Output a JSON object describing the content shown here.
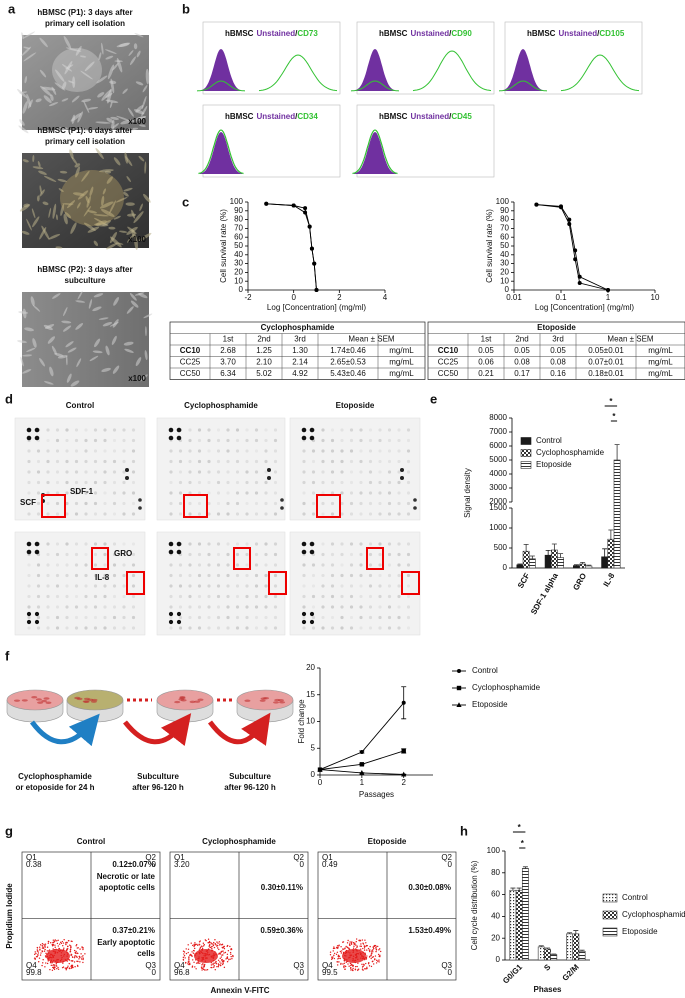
{
  "panel_labels": [
    "a",
    "b",
    "c",
    "d",
    "e",
    "f",
    "g",
    "h"
  ],
  "panel_a": {
    "captions": [
      [
        "hBMSC (P1): 3 days after",
        "primary cell isolation"
      ],
      [
        "hBMSC (P1): 6 days after",
        "primary cell isolation"
      ],
      [
        "hBMSC (P2): 3 days after",
        "subculture"
      ]
    ],
    "magnification": [
      "x100",
      "x100",
      "x100"
    ]
  },
  "panel_b": {
    "histograms": [
      {
        "sample": "hBMSC",
        "control": "Unstained",
        "separator": "/",
        "marker": "CD73"
      },
      {
        "sample": "hBMSC",
        "control": "Unstained",
        "separator": "/",
        "marker": "CD90"
      },
      {
        "sample": "hBMSC",
        "control": "Unstained",
        "separator": "/",
        "marker": "CD105"
      },
      {
        "sample": "hBMSC",
        "control": "Unstained",
        "separator": "/",
        "marker": "CD34"
      },
      {
        "sample": "hBMSC",
        "control": "Unstained",
        "separator": "/",
        "marker": "CD45"
      }
    ],
    "control_color": "#7030a0",
    "marker_color": "#33c233"
  },
  "tables": [
    {
      "title": "Cyclophosphamide",
      "header": [
        "1st",
        "2nd",
        "3rd",
        "Mean ± SEM"
      ],
      "rows": [
        [
          "CC10",
          "2.68",
          "1.25",
          "1.30",
          "1.74±0.46",
          "mg/mL"
        ],
        [
          "CC25",
          "3.70",
          "2.10",
          "2.14",
          "2.65±0.53",
          "mg/mL"
        ],
        [
          "CC50",
          "6.34",
          "5.02",
          "4.92",
          "5.43±0.46",
          "mg/mL"
        ]
      ]
    },
    {
      "title": "Etoposide",
      "header": [
        "1st",
        "2nd",
        "3rd",
        "Mean ± SEM"
      ],
      "rows": [
        [
          "CC10",
          "0.05",
          "0.05",
          "0.05",
          "0.05±0.01",
          "mg/mL"
        ],
        [
          "CC25",
          "0.06",
          "0.08",
          "0.08",
          "0.07±0.01",
          "mg/mL"
        ],
        [
          "CC50",
          "0.21",
          "0.17",
          "0.16",
          "0.18±0.01",
          "mg/mL"
        ]
      ]
    }
  ],
  "panel_d": {
    "columns": [
      "Control",
      "Cyclophosphamide",
      "Etoposide"
    ],
    "spot_labels": [
      "SCF",
      "SDF-1",
      "GRO",
      "IL-8"
    ]
  },
  "panel_f_schematic": {
    "steps": [
      [
        "Cyclophosphamide",
        "or etoposide for 24 h"
      ],
      [
        "Subculture",
        "after 96-120 h"
      ],
      [
        "Subculture",
        "after 96-120 h"
      ]
    ]
  },
  "panel_g": {
    "y_label": "Propidium Iodide",
    "x_label": "Annexin V-FITC",
    "quadrant_names": [
      "Q1",
      "Q2",
      "Q3",
      "Q4"
    ],
    "late_label": [
      "Necrotic or late",
      "apoptotic cells"
    ],
    "early_label": [
      "Early apoptotic",
      "cells"
    ],
    "plots": [
      {
        "title": "Control",
        "quadrant_values": [
          "0.38",
          "0",
          "0",
          "99.8"
        ],
        "late": "0.12±0.07%",
        "early": "0.37±0.21%"
      },
      {
        "title": "Cyclophosphamide",
        "quadrant_values": [
          "3.20",
          "0",
          "0",
          "96.8"
        ],
        "late": "0.30±0.11%",
        "early": "0.59±0.36%"
      },
      {
        "title": "Etoposide",
        "quadrant_values": [
          "0.49",
          "0",
          "0",
          "99.5"
        ],
        "late": "0.30±0.08%",
        "early": "1.53±0.49%"
      }
    ]
  },
  "chart_data": [
    {
      "type": "line",
      "x_label": "Log [Concentration] (mg/ml)",
      "y_label": "Cell survival rate (%)",
      "x": [
        -1.2,
        0,
        0.5,
        0.7,
        0.8,
        0.9,
        1.0
      ],
      "series": [
        {
          "color": "#000000",
          "marker": "circle",
          "values": [
            98,
            96,
            93,
            72,
            47,
            30,
            0
          ]
        },
        {
          "color": "#000000",
          "marker": "circle",
          "values": [
            98,
            96,
            88,
            72,
            47,
            30,
            0
          ]
        }
      ],
      "xlim": [
        -2,
        4
      ],
      "xticks": [
        -2,
        0,
        2,
        4
      ],
      "ylim": [
        0,
        100
      ],
      "yticks": [
        0,
        10,
        20,
        30,
        40,
        50,
        60,
        70,
        80,
        90,
        100
      ]
    },
    {
      "type": "line",
      "x_label": "Log [Concentration] (mg/ml)",
      "y_label": "Cell survival rate (%)",
      "xlog": true,
      "x": [
        0.03,
        0.1,
        0.15,
        0.2,
        0.25,
        1
      ],
      "series": [
        {
          "color": "#000000",
          "marker": "circle",
          "values": [
            97,
            95,
            80,
            45,
            15,
            0
          ]
        },
        {
          "color": "#000000",
          "marker": "circle",
          "values": [
            97,
            94,
            75,
            35,
            8,
            0
          ]
        }
      ],
      "xlim": [
        0.01,
        10
      ],
      "xticks": [
        0.01,
        0.1,
        1,
        10
      ],
      "ylim": [
        0,
        100
      ],
      "yticks": [
        0,
        10,
        20,
        30,
        40,
        50,
        60,
        70,
        80,
        90,
        100
      ]
    },
    {
      "type": "bar",
      "y_label": "Signal density",
      "categories": [
        "SCF",
        "SDF-1 alpha",
        "GRO",
        "IL-8"
      ],
      "series": [
        {
          "name": "Control",
          "color": "#1a1a1a",
          "pattern": "solid",
          "values": [
            80,
            320,
            60,
            280
          ],
          "errors": [
            20,
            120,
            20,
            200
          ]
        },
        {
          "name": "Cyclophosphamide",
          "color": "#333333",
          "pattern": "checker",
          "values": [
            420,
            450,
            100,
            720
          ],
          "errors": [
            170,
            150,
            40,
            230
          ]
        },
        {
          "name": "Etoposide",
          "color": "#333333",
          "pattern": "hstripe",
          "values": [
            230,
            260,
            50,
            5000
          ],
          "errors": [
            70,
            100,
            20,
            1100
          ]
        }
      ],
      "ylim": [
        0,
        8000
      ],
      "yticks": [
        0,
        500,
        1000,
        1500,
        2000,
        3000,
        4000,
        5000,
        6000,
        7000,
        8000
      ],
      "axis_break": [
        1500,
        2000
      ],
      "annotations": [
        "*",
        "*"
      ],
      "legend": "top-left"
    },
    {
      "type": "line",
      "x_label": "Passages",
      "y_label": "Fold change",
      "x": [
        0,
        1,
        2
      ],
      "series": [
        {
          "name": "Control",
          "color": "#000000",
          "marker": "circle",
          "values": [
            1,
            4.3,
            13.5
          ],
          "errors": [
            0,
            0.2,
            3
          ]
        },
        {
          "name": "Cyclophosphamide",
          "color": "#000000",
          "marker": "square",
          "values": [
            1,
            2,
            4.5
          ],
          "errors": [
            0,
            0.1,
            0.4
          ]
        },
        {
          "name": "Etoposide",
          "color": "#000000",
          "marker": "triangle",
          "values": [
            1,
            0.4,
            0.1
          ],
          "errors": [
            0,
            0.05,
            0.05
          ]
        }
      ],
      "xlim": [
        0,
        2.7
      ],
      "xticks": [
        0,
        1,
        2
      ],
      "ylim": [
        0,
        20
      ],
      "yticks": [
        0,
        5,
        10,
        15,
        20
      ],
      "legend": "right"
    },
    {
      "type": "bar",
      "y_label": "Cell cycle distribution (%)",
      "x_label": "Phases",
      "categories": [
        "G0/G1",
        "S",
        "G2/M"
      ],
      "series": [
        {
          "name": "Control",
          "color": "#333333",
          "pattern": "dots",
          "values": [
            64,
            12,
            24
          ],
          "errors": [
            2,
            1,
            1
          ]
        },
        {
          "name": "Cyclophosphamide",
          "color": "#333333",
          "pattern": "checker",
          "values": [
            64,
            10,
            24
          ],
          "errors": [
            2,
            1,
            3
          ]
        },
        {
          "name": "Etoposide",
          "color": "#333333",
          "pattern": "hstripe",
          "values": [
            84,
            5,
            8
          ],
          "errors": [
            1.5,
            0.5,
            1
          ]
        }
      ],
      "ylim": [
        0,
        100
      ],
      "yticks": [
        0,
        20,
        40,
        60,
        80,
        100
      ],
      "annotations": [
        "*",
        "*"
      ],
      "legend": "right"
    }
  ]
}
